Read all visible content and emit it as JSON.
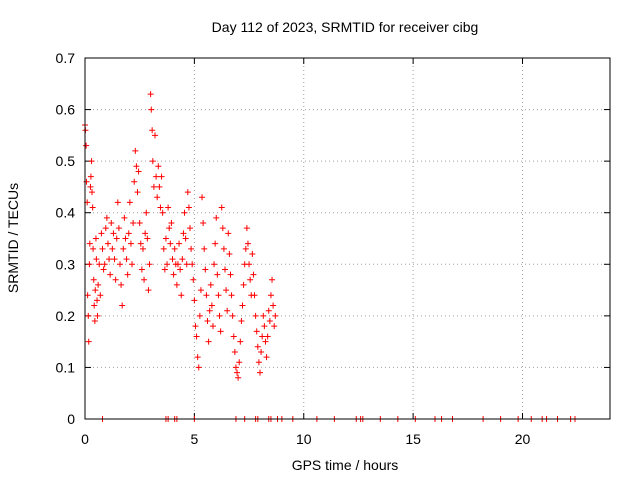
{
  "chart_data": {
    "type": "scatter",
    "title": "Day 112 of 2023, SRMTID for receiver cibg",
    "xlabel": "GPS time / hours",
    "ylabel": "SRMTID / TECUs",
    "xlim": [
      0,
      24
    ],
    "ylim": [
      0,
      0.7
    ],
    "x_ticks": [
      0,
      5,
      10,
      15,
      20
    ],
    "y_ticks": [
      0,
      0.1,
      0.2,
      0.3,
      0.4,
      0.5,
      0.6,
      0.7
    ],
    "x_tick_labels": [
      "0",
      "5",
      "10",
      "15",
      "20"
    ],
    "y_tick_labels": [
      "0",
      "0.1",
      "0.2",
      "0.3",
      "0.4",
      "0.5",
      "0.6",
      "0.7"
    ],
    "grid": true,
    "marker": "+",
    "color": "#ff0000",
    "series": [
      {
        "name": "SRMTID",
        "points": [
          [
            0.0,
            0.57
          ],
          [
            0.02,
            0.56
          ],
          [
            0.05,
            0.53
          ],
          [
            0.07,
            0.46
          ],
          [
            0.1,
            0.42
          ],
          [
            0.12,
            0.24
          ],
          [
            0.15,
            0.2
          ],
          [
            0.17,
            0.15
          ],
          [
            0.2,
            0.3
          ],
          [
            0.22,
            0.34
          ],
          [
            0.25,
            0.45
          ],
          [
            0.27,
            0.47
          ],
          [
            0.3,
            0.5
          ],
          [
            0.32,
            0.44
          ],
          [
            0.35,
            0.41
          ],
          [
            0.37,
            0.33
          ],
          [
            0.4,
            0.27
          ],
          [
            0.42,
            0.22
          ],
          [
            0.45,
            0.19
          ],
          [
            0.47,
            0.25
          ],
          [
            0.5,
            0.35
          ],
          [
            0.52,
            0.31
          ],
          [
            0.55,
            0.23
          ],
          [
            0.57,
            0.2
          ],
          [
            0.6,
            0.26
          ],
          [
            0.65,
            0.3
          ],
          [
            0.7,
            0.24
          ],
          [
            0.75,
            0.36
          ],
          [
            0.8,
            0.33
          ],
          [
            0.85,
            0.29
          ],
          [
            0.9,
            0.3
          ],
          [
            0.95,
            0.37
          ],
          [
            1.0,
            0.39
          ],
          [
            1.05,
            0.34
          ],
          [
            1.1,
            0.31
          ],
          [
            1.15,
            0.28
          ],
          [
            1.2,
            0.38
          ],
          [
            1.25,
            0.33
          ],
          [
            1.3,
            0.36
          ],
          [
            1.35,
            0.31
          ],
          [
            1.4,
            0.27
          ],
          [
            1.45,
            0.35
          ],
          [
            1.5,
            0.42
          ],
          [
            1.55,
            0.37
          ],
          [
            1.6,
            0.3
          ],
          [
            1.65,
            0.26
          ],
          [
            1.7,
            0.22
          ],
          [
            1.75,
            0.33
          ],
          [
            1.8,
            0.39
          ],
          [
            1.85,
            0.35
          ],
          [
            1.9,
            0.31
          ],
          [
            1.95,
            0.28
          ],
          [
            2.0,
            0.36
          ],
          [
            2.05,
            0.42
          ],
          [
            2.1,
            0.34
          ],
          [
            2.15,
            0.3
          ],
          [
            2.2,
            0.38
          ],
          [
            2.25,
            0.46
          ],
          [
            2.3,
            0.52
          ],
          [
            2.35,
            0.49
          ],
          [
            2.4,
            0.44
          ],
          [
            2.45,
            0.48
          ],
          [
            2.5,
            0.38
          ],
          [
            2.55,
            0.34
          ],
          [
            2.6,
            0.29
          ],
          [
            2.65,
            0.33
          ],
          [
            2.7,
            0.27
          ],
          [
            2.75,
            0.36
          ],
          [
            2.8,
            0.4
          ],
          [
            2.85,
            0.35
          ],
          [
            2.9,
            0.25
          ],
          [
            2.95,
            0.3
          ],
          [
            3.0,
            0.63
          ],
          [
            3.03,
            0.6
          ],
          [
            3.07,
            0.56
          ],
          [
            3.1,
            0.5
          ],
          [
            3.15,
            0.45
          ],
          [
            3.2,
            0.55
          ],
          [
            3.25,
            0.47
          ],
          [
            3.3,
            0.43
          ],
          [
            3.35,
            0.49
          ],
          [
            3.4,
            0.45
          ],
          [
            3.45,
            0.41
          ],
          [
            3.5,
            0.47
          ],
          [
            3.55,
            0.4
          ],
          [
            3.6,
            0.33
          ],
          [
            3.65,
            0.29
          ],
          [
            3.7,
            0.35
          ],
          [
            3.75,
            0.3
          ],
          [
            3.8,
            0.41
          ],
          [
            3.85,
            0.37
          ],
          [
            3.9,
            0.34
          ],
          [
            3.95,
            0.38
          ],
          [
            4.0,
            0.31
          ],
          [
            4.05,
            0.28
          ],
          [
            4.1,
            0.33
          ],
          [
            4.15,
            0.3
          ],
          [
            4.2,
            0.26
          ],
          [
            4.25,
            0.3
          ],
          [
            4.3,
            0.34
          ],
          [
            4.35,
            0.29
          ],
          [
            4.4,
            0.24
          ],
          [
            4.45,
            0.31
          ],
          [
            4.5,
            0.36
          ],
          [
            4.55,
            0.4
          ],
          [
            4.6,
            0.35
          ],
          [
            4.65,
            0.3
          ],
          [
            4.7,
            0.44
          ],
          [
            4.75,
            0.41
          ],
          [
            4.8,
            0.37
          ],
          [
            4.85,
            0.33
          ],
          [
            4.9,
            0.3
          ],
          [
            4.95,
            0.27
          ],
          [
            5.0,
            0.23
          ],
          [
            5.05,
            0.18
          ],
          [
            5.1,
            0.16
          ],
          [
            5.15,
            0.12
          ],
          [
            5.2,
            0.1
          ],
          [
            5.25,
            0.2
          ],
          [
            5.3,
            0.25
          ],
          [
            5.35,
            0.43
          ],
          [
            5.4,
            0.38
          ],
          [
            5.45,
            0.33
          ],
          [
            5.5,
            0.29
          ],
          [
            5.55,
            0.24
          ],
          [
            5.6,
            0.19
          ],
          [
            5.65,
            0.15
          ],
          [
            5.7,
            0.21
          ],
          [
            5.75,
            0.26
          ],
          [
            5.8,
            0.22
          ],
          [
            5.85,
            0.18
          ],
          [
            5.9,
            0.3
          ],
          [
            5.95,
            0.34
          ],
          [
            6.0,
            0.39
          ],
          [
            6.05,
            0.28
          ],
          [
            6.1,
            0.24
          ],
          [
            6.15,
            0.2
          ],
          [
            6.2,
            0.17
          ],
          [
            6.25,
            0.41
          ],
          [
            6.3,
            0.37
          ],
          [
            6.35,
            0.33
          ],
          [
            6.4,
            0.29
          ],
          [
            6.45,
            0.25
          ],
          [
            6.5,
            0.21
          ],
          [
            6.55,
            0.36
          ],
          [
            6.6,
            0.32
          ],
          [
            6.65,
            0.28
          ],
          [
            6.7,
            0.24
          ],
          [
            6.75,
            0.2
          ],
          [
            6.8,
            0.16
          ],
          [
            6.85,
            0.13
          ],
          [
            6.9,
            0.1
          ],
          [
            6.95,
            0.09
          ],
          [
            7.0,
            0.08
          ],
          [
            7.05,
            0.11
          ],
          [
            7.1,
            0.15
          ],
          [
            7.15,
            0.19
          ],
          [
            7.2,
            0.22
          ],
          [
            7.25,
            0.26
          ],
          [
            7.3,
            0.3
          ],
          [
            7.35,
            0.33
          ],
          [
            7.4,
            0.37
          ],
          [
            7.45,
            0.34
          ],
          [
            7.5,
            0.3
          ],
          [
            7.55,
            0.27
          ],
          [
            7.6,
            0.24
          ],
          [
            7.65,
            0.32
          ],
          [
            7.7,
            0.28
          ],
          [
            7.75,
            0.24
          ],
          [
            7.8,
            0.2
          ],
          [
            7.85,
            0.17
          ],
          [
            7.9,
            0.14
          ],
          [
            7.95,
            0.11
          ],
          [
            8.0,
            0.09
          ],
          [
            8.05,
            0.13
          ],
          [
            8.1,
            0.16
          ],
          [
            8.15,
            0.2
          ],
          [
            8.2,
            0.18
          ],
          [
            8.25,
            0.15
          ],
          [
            8.3,
            0.12
          ],
          [
            8.35,
            0.16
          ],
          [
            8.4,
            0.21
          ],
          [
            8.45,
            0.19
          ],
          [
            8.5,
            0.24
          ],
          [
            8.55,
            0.27
          ],
          [
            8.6,
            0.22
          ],
          [
            8.65,
            0.18
          ],
          [
            8.7,
            0.2
          ],
          [
            0.8,
            0.0
          ],
          [
            3.7,
            0.0
          ],
          [
            3.8,
            0.0
          ],
          [
            4.1,
            0.0
          ],
          [
            4.2,
            0.0
          ],
          [
            5.0,
            0.0
          ],
          [
            6.9,
            0.0
          ],
          [
            7.3,
            0.0
          ],
          [
            7.8,
            0.0
          ],
          [
            7.9,
            0.0
          ],
          [
            8.4,
            0.0
          ],
          [
            8.5,
            0.0
          ],
          [
            8.8,
            0.0
          ],
          [
            9.0,
            0.0
          ],
          [
            9.5,
            0.0
          ],
          [
            10.6,
            0.0
          ],
          [
            11.4,
            0.0
          ],
          [
            12.4,
            0.0
          ],
          [
            12.6,
            0.0
          ],
          [
            12.7,
            0.0
          ],
          [
            13.5,
            0.0
          ],
          [
            14.3,
            0.0
          ],
          [
            15.1,
            0.0
          ],
          [
            16.0,
            0.0
          ],
          [
            16.3,
            0.0
          ],
          [
            16.8,
            0.0
          ],
          [
            18.2,
            0.0
          ],
          [
            19.0,
            0.0
          ],
          [
            19.8,
            0.0
          ],
          [
            20.4,
            0.0
          ],
          [
            20.9,
            0.0
          ],
          [
            21.1,
            0.0
          ],
          [
            21.6,
            0.0
          ],
          [
            22.2,
            0.0
          ],
          [
            22.4,
            0.0
          ]
        ]
      }
    ]
  }
}
